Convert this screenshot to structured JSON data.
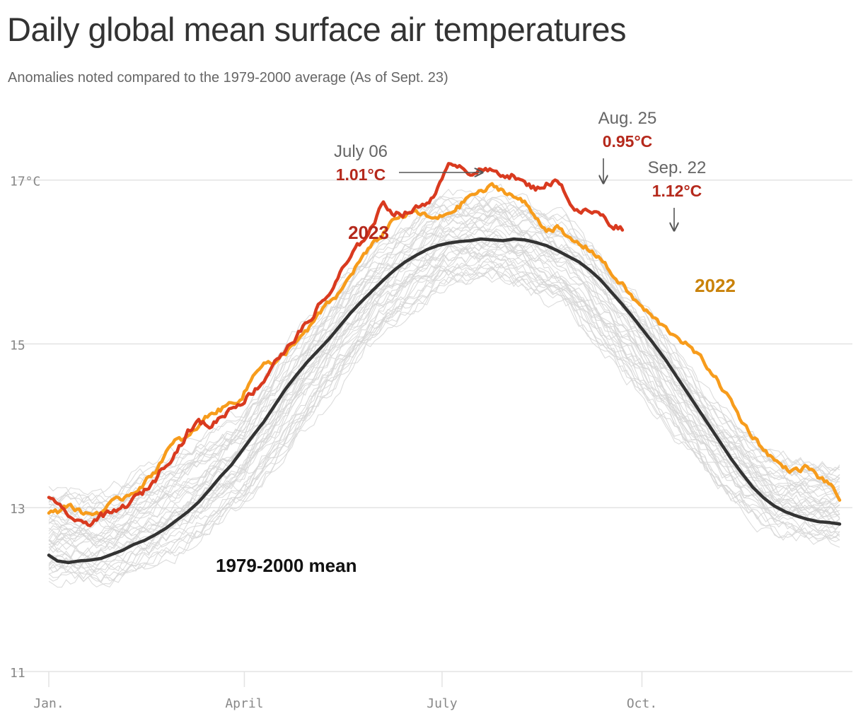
{
  "title": "Daily global mean surface air temperatures",
  "subtitle": "Anomalies noted compared to the 1979-2000 average (As of Sept. 23)",
  "chart_data": {
    "type": "line",
    "title": "Daily global mean surface air temperatures",
    "subtitle": "Anomalies noted compared to the 1979-2000 average (As of Sept. 23)",
    "xlabel": "",
    "ylabel": "",
    "x_unit": "day of year",
    "xlim": [
      1,
      365
    ],
    "ylim": [
      11,
      17.8
    ],
    "y_ticks": [
      {
        "value": 11,
        "label": "11"
      },
      {
        "value": 13,
        "label": "13"
      },
      {
        "value": 15,
        "label": "15"
      },
      {
        "value": 17,
        "label": "17°C"
      }
    ],
    "x_ticks": [
      {
        "value": 1,
        "label": "Jan."
      },
      {
        "value": 91,
        "label": "April"
      },
      {
        "value": 182,
        "label": "July"
      },
      {
        "value": 274,
        "label": "Oct."
      }
    ],
    "grid": true,
    "legend": "direct labels",
    "colors": {
      "2023": "#d93a1f",
      "2022": "#f79c1c",
      "mean": "#333333",
      "background_years": "#d6d6d6",
      "grid": "#e3e3e3"
    },
    "series": [
      {
        "name": "2023",
        "x": [
          1,
          5,
          10,
          15,
          20,
          25,
          30,
          35,
          40,
          45,
          50,
          55,
          60,
          65,
          70,
          75,
          80,
          85,
          90,
          95,
          100,
          105,
          110,
          115,
          120,
          125,
          130,
          135,
          140,
          145,
          150,
          155,
          160,
          165,
          170,
          175,
          180,
          185,
          188,
          195,
          200,
          205,
          210,
          215,
          220,
          225,
          230,
          235,
          237,
          240,
          245,
          250,
          255,
          260,
          265
        ],
        "values": [
          13.15,
          13.0,
          12.92,
          12.8,
          12.82,
          12.9,
          12.92,
          13.0,
          13.1,
          13.2,
          13.35,
          13.55,
          13.7,
          13.92,
          14.05,
          14.0,
          14.1,
          14.22,
          14.3,
          14.42,
          14.55,
          14.8,
          14.9,
          15.1,
          15.25,
          15.45,
          15.6,
          15.85,
          16.05,
          16.25,
          16.45,
          16.72,
          16.6,
          16.6,
          16.65,
          16.72,
          16.9,
          17.15,
          17.22,
          17.1,
          17.12,
          17.1,
          17.08,
          17.05,
          16.95,
          16.9,
          16.95,
          16.98,
          16.98,
          16.75,
          16.6,
          16.62,
          16.58,
          16.45,
          16.42
        ]
      },
      {
        "name": "2022",
        "x": [
          1,
          5,
          10,
          15,
          20,
          25,
          30,
          35,
          40,
          45,
          50,
          55,
          60,
          65,
          70,
          75,
          80,
          85,
          90,
          95,
          100,
          105,
          110,
          115,
          120,
          125,
          130,
          135,
          140,
          145,
          150,
          155,
          160,
          165,
          170,
          175,
          180,
          185,
          190,
          195,
          200,
          205,
          210,
          215,
          220,
          225,
          230,
          235,
          240,
          245,
          250,
          255,
          260,
          265,
          270,
          275,
          280,
          285,
          290,
          295,
          300,
          305,
          310,
          315,
          320,
          325,
          330,
          335,
          340,
          345,
          350,
          355,
          360,
          365
        ],
        "values": [
          12.93,
          12.95,
          13.05,
          12.95,
          12.92,
          12.95,
          13.05,
          13.12,
          13.2,
          13.3,
          13.45,
          13.68,
          13.82,
          13.85,
          14.0,
          14.15,
          14.2,
          14.28,
          14.35,
          14.6,
          14.8,
          14.75,
          14.88,
          15.05,
          15.15,
          15.35,
          15.5,
          15.62,
          15.85,
          16.05,
          16.2,
          16.35,
          16.55,
          16.55,
          16.62,
          16.55,
          16.52,
          16.6,
          16.68,
          16.82,
          16.85,
          16.92,
          16.88,
          16.8,
          16.72,
          16.55,
          16.4,
          16.42,
          16.28,
          16.22,
          16.15,
          16.05,
          15.85,
          15.72,
          15.55,
          15.42,
          15.3,
          15.18,
          15.1,
          14.98,
          14.85,
          14.7,
          14.5,
          14.3,
          14.05,
          13.88,
          13.72,
          13.58,
          13.48,
          13.45,
          13.5,
          13.38,
          13.3,
          13.1
        ]
      },
      {
        "name": "1979-2000 mean",
        "x": [
          1,
          5,
          10,
          15,
          20,
          25,
          30,
          35,
          40,
          45,
          50,
          55,
          60,
          65,
          70,
          75,
          80,
          85,
          90,
          95,
          100,
          105,
          110,
          115,
          120,
          125,
          130,
          135,
          140,
          145,
          150,
          155,
          160,
          165,
          170,
          175,
          180,
          185,
          190,
          195,
          200,
          205,
          210,
          215,
          220,
          225,
          230,
          235,
          240,
          245,
          250,
          255,
          260,
          265,
          270,
          275,
          280,
          285,
          290,
          295,
          300,
          305,
          310,
          315,
          320,
          325,
          330,
          335,
          340,
          345,
          350,
          355,
          360,
          365
        ],
        "values": [
          12.42,
          12.35,
          12.33,
          12.35,
          12.36,
          12.38,
          12.43,
          12.48,
          12.55,
          12.6,
          12.67,
          12.75,
          12.85,
          12.95,
          13.07,
          13.22,
          13.38,
          13.52,
          13.7,
          13.88,
          14.05,
          14.25,
          14.45,
          14.62,
          14.78,
          14.92,
          15.06,
          15.22,
          15.38,
          15.52,
          15.65,
          15.78,
          15.9,
          16.0,
          16.08,
          16.15,
          16.2,
          16.23,
          16.25,
          16.26,
          16.28,
          16.27,
          16.26,
          16.28,
          16.27,
          16.24,
          16.2,
          16.14,
          16.07,
          16.0,
          15.9,
          15.78,
          15.63,
          15.48,
          15.32,
          15.15,
          14.98,
          14.8,
          14.6,
          14.4,
          14.2,
          14.0,
          13.8,
          13.6,
          13.42,
          13.25,
          13.12,
          13.02,
          12.95,
          12.9,
          12.86,
          12.83,
          12.82,
          12.8
        ]
      }
    ],
    "background_series": {
      "description": "other individual years 1979-2021",
      "count": 43,
      "band_min_x": [
        1,
        30,
        60,
        91,
        120,
        150,
        182,
        210,
        240,
        274,
        305,
        335,
        365
      ],
      "band_min": [
        12.0,
        12.0,
        12.3,
        12.9,
        13.9,
        14.9,
        15.6,
        15.7,
        15.3,
        14.3,
        13.3,
        12.6,
        12.5
      ],
      "band_max": [
        13.3,
        13.3,
        13.8,
        14.3,
        15.4,
        16.3,
        16.9,
        16.9,
        16.6,
        15.6,
        14.4,
        13.7,
        13.6
      ]
    },
    "annotations": [
      {
        "date": "July 06",
        "value": "1.01°C",
        "series": "2023"
      },
      {
        "date": "Aug. 25",
        "value": "0.95°C",
        "series": "2023"
      },
      {
        "date": "Sep. 22",
        "value": "1.12°C",
        "series": "2023"
      }
    ],
    "series_labels": {
      "s2023": "2023",
      "s2022": "2022",
      "mean": "1979-2000 mean"
    }
  }
}
